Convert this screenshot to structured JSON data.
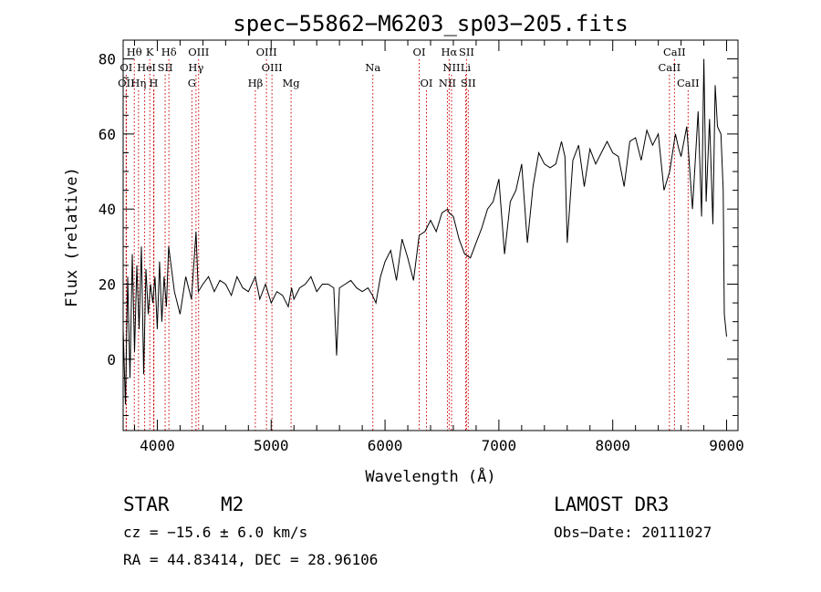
{
  "chart_data": {
    "type": "line",
    "title": "spec−55862−M6203_sp03−205.fits",
    "xlabel": "Wavelength (Å)",
    "ylabel": "Flux (relative)",
    "xlim": [
      3700,
      9100
    ],
    "ylim": [
      -19,
      85
    ],
    "xticks": [
      4000,
      5000,
      6000,
      7000,
      8000,
      9000
    ],
    "yticks": [
      0,
      20,
      40,
      60,
      80
    ],
    "series": [
      {
        "name": "spectrum",
        "x": [
          3700,
          3720,
          3740,
          3760,
          3780,
          3800,
          3820,
          3840,
          3860,
          3880,
          3900,
          3920,
          3940,
          3960,
          3980,
          4000,
          4020,
          4040,
          4060,
          4080,
          4100,
          4150,
          4200,
          4250,
          4300,
          4340,
          4360,
          4400,
          4450,
          4500,
          4550,
          4600,
          4650,
          4700,
          4750,
          4800,
          4860,
          4900,
          4950,
          5000,
          5050,
          5100,
          5150,
          5180,
          5200,
          5250,
          5300,
          5350,
          5400,
          5450,
          5500,
          5550,
          5575,
          5600,
          5650,
          5700,
          5750,
          5800,
          5850,
          5890,
          5920,
          5960,
          6000,
          6050,
          6100,
          6150,
          6200,
          6250,
          6300,
          6350,
          6400,
          6450,
          6500,
          6550,
          6563,
          6600,
          6650,
          6700,
          6750,
          6800,
          6850,
          6900,
          6950,
          7000,
          7050,
          7100,
          7150,
          7200,
          7250,
          7300,
          7350,
          7400,
          7450,
          7500,
          7550,
          7580,
          7600,
          7650,
          7700,
          7750,
          7800,
          7850,
          7900,
          7950,
          8000,
          8050,
          8100,
          8150,
          8200,
          8250,
          8300,
          8350,
          8400,
          8450,
          8500,
          8550,
          8580,
          8600,
          8650,
          8700,
          8750,
          8780,
          8800,
          8820,
          8850,
          8880,
          8900,
          8920,
          8950,
          8970,
          8980,
          9000
        ],
        "values": [
          8,
          -12,
          22,
          -5,
          28,
          2,
          25,
          8,
          30,
          -4,
          24,
          12,
          20,
          15,
          22,
          8,
          26,
          10,
          22,
          14,
          30,
          18,
          12,
          22,
          16,
          34,
          18,
          20,
          22,
          18,
          21,
          20,
          17,
          22,
          19,
          18,
          22,
          16,
          20,
          15,
          18,
          17,
          14,
          19,
          16,
          19,
          20,
          22,
          18,
          20,
          20,
          19,
          1,
          19,
          20,
          21,
          19,
          18,
          19,
          17,
          15,
          22,
          26,
          29,
          21,
          32,
          27,
          21,
          33,
          34,
          37,
          34,
          39,
          40,
          39,
          38,
          32,
          28,
          27,
          31,
          35,
          40,
          42,
          48,
          28,
          42,
          45,
          52,
          31,
          46,
          55,
          52,
          51,
          52,
          58,
          54,
          31,
          53,
          57,
          46,
          56,
          52,
          55,
          58,
          55,
          54,
          46,
          58,
          59,
          53,
          61,
          57,
          60,
          45,
          50,
          60,
          56,
          54,
          62,
          40,
          66,
          38,
          80,
          42,
          64,
          36,
          73,
          62,
          60,
          45,
          12,
          6
        ]
      }
    ]
  },
  "line_markers": [
    {
      "label": "Hθ",
      "wavelength": 3798,
      "row": 1
    },
    {
      "label": "K",
      "wavelength": 3934,
      "row": 1
    },
    {
      "label": "Hδ",
      "wavelength": 4102,
      "row": 1
    },
    {
      "label": "OIII",
      "wavelength": 4363,
      "row": 1
    },
    {
      "label": "OIII",
      "wavelength": 4959,
      "row": 1
    },
    {
      "label": "OI",
      "wavelength": 6300,
      "row": 1
    },
    {
      "label": "Hα",
      "wavelength": 6563,
      "row": 1
    },
    {
      "label": "SII",
      "wavelength": 6716,
      "row": 1
    },
    {
      "label": "CaII",
      "wavelength": 8542,
      "row": 1
    },
    {
      "label": "OI",
      "wavelength": 3727,
      "row": 2
    },
    {
      "label": "He",
      "wavelength": 3889,
      "row": 2
    },
    {
      "label": "I",
      "wavelength": 3970,
      "row": 2
    },
    {
      "label": "SII",
      "wavelength": 4069,
      "row": 2
    },
    {
      "label": "Hγ",
      "wavelength": 4340,
      "row": 2
    },
    {
      "label": "OIII",
      "wavelength": 5007,
      "row": 2
    },
    {
      "label": "Na",
      "wavelength": 5893,
      "row": 2
    },
    {
      "label": "NII",
      "wavelength": 6584,
      "row": 2
    },
    {
      "label": "Li",
      "wavelength": 6708,
      "row": 2
    },
    {
      "label": "CaII",
      "wavelength": 8498,
      "row": 2
    },
    {
      "label": "OII",
      "wavelength": 3727,
      "row": 3
    },
    {
      "label": "Hη",
      "wavelength": 3835,
      "row": 3
    },
    {
      "label": "H",
      "wavelength": 3968,
      "row": 3
    },
    {
      "label": "G",
      "wavelength": 4304,
      "row": 3
    },
    {
      "label": "Hβ",
      "wavelength": 4861,
      "row": 3
    },
    {
      "label": "Mg",
      "wavelength": 5175,
      "row": 3
    },
    {
      "label": "OI",
      "wavelength": 6364,
      "row": 3
    },
    {
      "label": "NII",
      "wavelength": 6548,
      "row": 3
    },
    {
      "label": "SII",
      "wavelength": 6731,
      "row": 3
    },
    {
      "label": "CaII",
      "wavelength": 8662,
      "row": 3
    }
  ],
  "marker_color": "#cc0000",
  "info": {
    "object_class": "STAR",
    "subclass": "M2",
    "survey": "LAMOST DR3",
    "cz": "cz = −15.6 ± 6.0 km/s",
    "obs_date": "Obs−Date: 20111027",
    "coords": "RA =  44.83414, DEC =  28.96106"
  }
}
